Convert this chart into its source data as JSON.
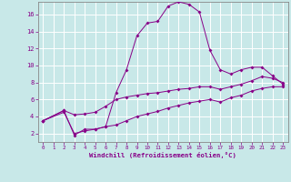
{
  "background_color": "#c8e8e8",
  "plot_bg_color": "#c8e8e8",
  "line_color": "#880088",
  "grid_color": "#aadddd",
  "xlabel": "Windchill (Refroidissement éolien,°C)",
  "xlabel_color": "#880088",
  "tick_color": "#880088",
  "xlim": [
    -0.5,
    23.5
  ],
  "ylim": [
    1.0,
    17.5
  ],
  "xticks": [
    0,
    1,
    2,
    3,
    4,
    5,
    6,
    7,
    8,
    9,
    10,
    11,
    12,
    13,
    14,
    15,
    16,
    17,
    18,
    19,
    20,
    21,
    22,
    23
  ],
  "yticks": [
    2,
    4,
    6,
    8,
    10,
    12,
    14,
    16
  ],
  "line1_x": [
    0,
    2,
    3,
    4,
    5,
    6,
    7,
    8,
    9,
    10,
    11,
    12,
    13,
    14,
    15,
    16,
    17,
    18,
    19,
    20,
    21,
    22,
    23
  ],
  "line1_y": [
    3.5,
    4.7,
    1.8,
    2.5,
    2.5,
    2.8,
    6.8,
    9.5,
    13.5,
    15.0,
    15.2,
    17.0,
    17.5,
    17.2,
    16.3,
    11.8,
    9.5,
    9.0,
    9.5,
    9.8,
    9.8,
    8.8,
    7.8
  ],
  "line2_x": [
    0,
    2,
    3,
    4,
    5,
    6,
    7,
    8,
    9,
    10,
    11,
    12,
    13,
    14,
    15,
    16,
    17,
    18,
    19,
    20,
    21,
    22,
    23
  ],
  "line2_y": [
    3.5,
    4.7,
    4.2,
    4.3,
    4.5,
    5.2,
    6.0,
    6.3,
    6.5,
    6.7,
    6.8,
    7.0,
    7.2,
    7.3,
    7.5,
    7.5,
    7.2,
    7.5,
    7.8,
    8.2,
    8.7,
    8.5,
    8.0
  ],
  "line3_x": [
    0,
    2,
    3,
    4,
    5,
    6,
    7,
    8,
    9,
    10,
    11,
    12,
    13,
    14,
    15,
    16,
    17,
    18,
    19,
    20,
    21,
    22,
    23
  ],
  "line3_y": [
    3.5,
    4.5,
    2.0,
    2.3,
    2.5,
    2.8,
    3.0,
    3.5,
    4.0,
    4.3,
    4.6,
    5.0,
    5.3,
    5.6,
    5.8,
    6.0,
    5.7,
    6.2,
    6.5,
    7.0,
    7.3,
    7.5,
    7.5
  ]
}
